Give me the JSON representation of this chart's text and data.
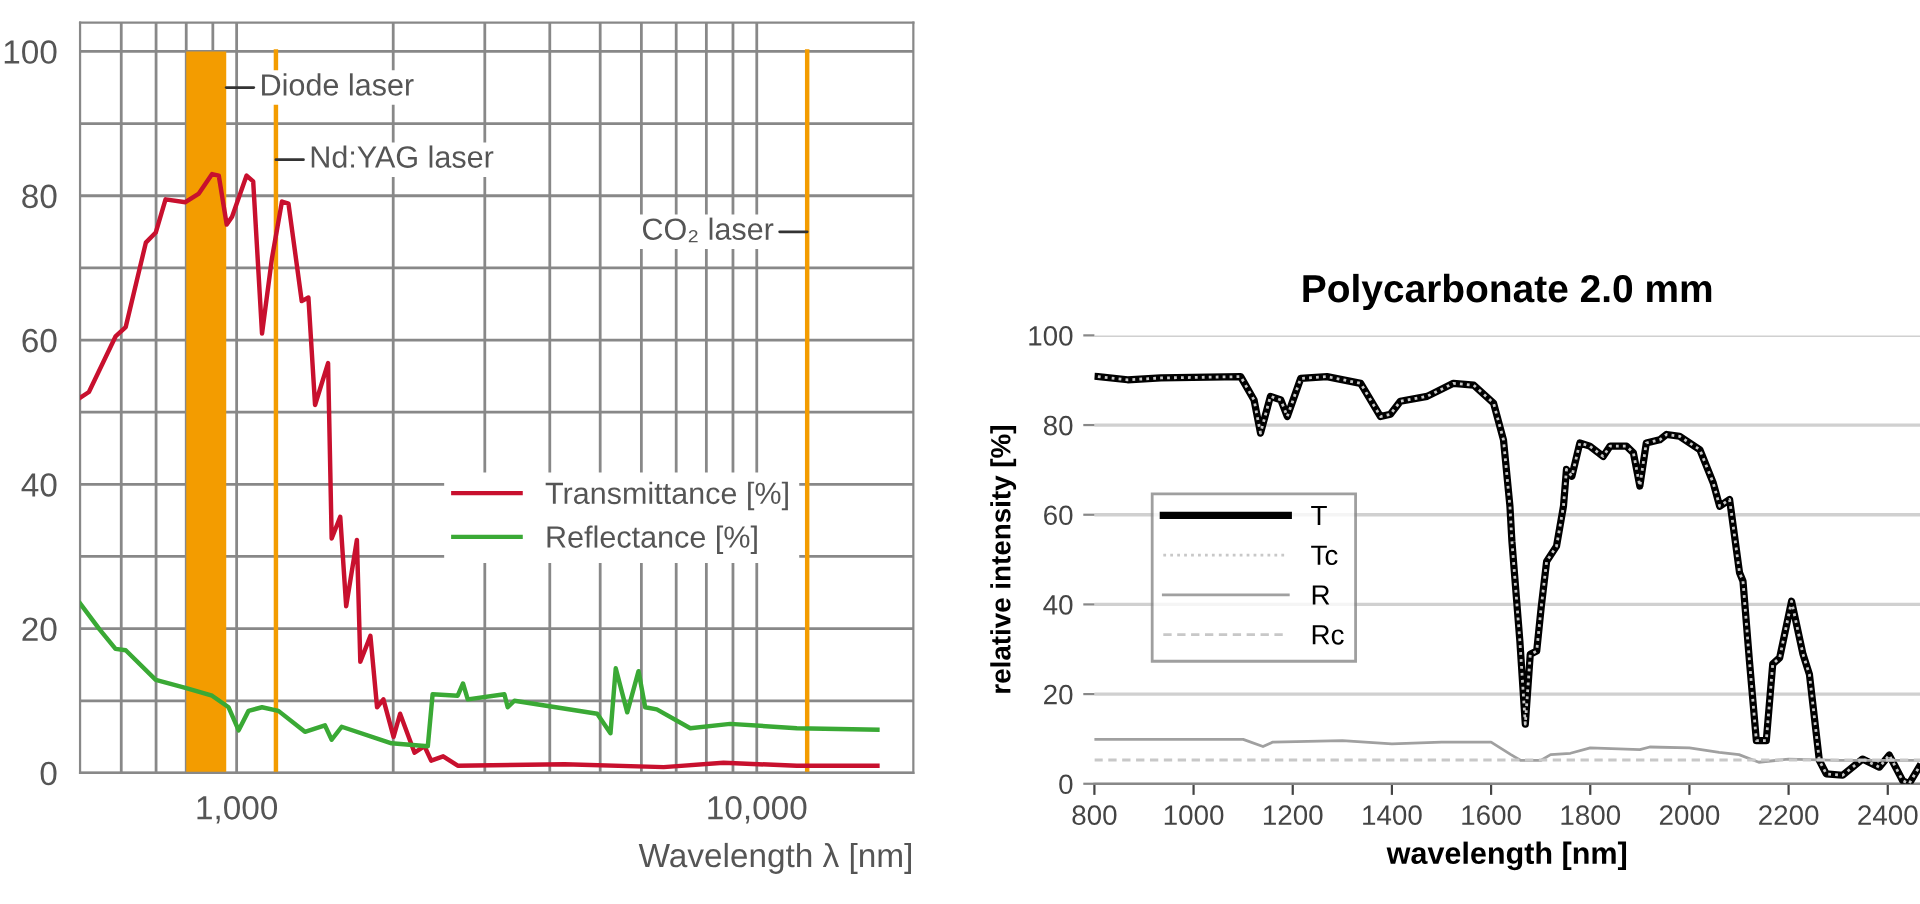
{
  "chart_data": [
    {
      "type": "line",
      "xlabel": "Wavelength λ [nm]",
      "log": "x",
      "xlim": [
        500,
        20000
      ],
      "ylim": [
        0,
        104
      ],
      "xticks": [
        {
          "value": 600,
          "label": null
        },
        {
          "value": 700,
          "label": null
        },
        {
          "value": 800,
          "label": null
        },
        {
          "value": 900,
          "label": null
        },
        {
          "value": 1000,
          "label": "1,000"
        },
        {
          "value": 2000,
          "label": null
        },
        {
          "value": 3000,
          "label": null
        },
        {
          "value": 4000,
          "label": null
        },
        {
          "value": 5000,
          "label": null
        },
        {
          "value": 6000,
          "label": null
        },
        {
          "value": 7000,
          "label": null
        },
        {
          "value": 8000,
          "label": null
        },
        {
          "value": 9000,
          "label": null
        },
        {
          "value": 10000,
          "label": "10,000"
        }
      ],
      "yticks": [
        0,
        {
          "value": 10,
          "label": null
        },
        20,
        {
          "value": 30,
          "label": null
        },
        40,
        {
          "value": 50,
          "label": null
        },
        60,
        {
          "value": 70,
          "label": null
        },
        80,
        {
          "value": 90,
          "label": null
        },
        100
      ],
      "grid": true,
      "legend": "center",
      "bands": [
        {
          "axis": "x",
          "from": 800,
          "to": 955,
          "label": "Diode laser",
          "color": "#f39c00"
        }
      ],
      "ref_lines": [
        {
          "axis": "x",
          "value": 1190,
          "label": "Nd:YAG laser",
          "color": "#f39c00"
        },
        {
          "axis": "x",
          "value": 12500,
          "label": "CO₂ laser",
          "color": "#f39c00"
        }
      ],
      "series": [
        {
          "name": "Transmittance [%]",
          "color": "#c8102e",
          "x": [
            500,
            520,
            585,
            612,
            669,
            699,
            730,
            797,
            846,
            897,
            924,
            957,
            980,
            1045,
            1076,
            1119,
            1169,
            1222,
            1258,
            1334,
            1374,
            1415,
            1499,
            1523,
            1582,
            1624,
            1703,
            1729,
            1808,
            1862,
            1915,
            2003,
            2062,
            2198,
            2297,
            2366,
            2495,
            2661,
            4266,
            6622,
            8630,
            11940,
            17060
          ],
          "values": [
            52,
            52.8,
            60.5,
            61.8,
            73.5,
            74.9,
            79.5,
            79.1,
            80.3,
            83,
            82.8,
            76,
            77.1,
            82.8,
            82,
            60.9,
            71.3,
            79.2,
            78.9,
            65.4,
            65.9,
            51,
            56.8,
            32.5,
            35.5,
            23.1,
            32.3,
            15.4,
            19,
            9.1,
            10.2,
            5,
            8.2,
            2.8,
            3.7,
            1.7,
            2.3,
            1,
            1.2,
            0.8,
            1.4,
            1,
            1
          ]
        },
        {
          "name": "Reflectance [%]",
          "color": "#3aa935",
          "x": [
            500,
            545,
            585,
            612,
            699,
            797,
            897,
            965,
            1009,
            1054,
            1119,
            1203,
            1353,
            1478,
            1523,
            1592,
            1985,
            2331,
            2381,
            2661,
            2724,
            2782,
            3272,
            3320,
            3420,
            4934,
            5233,
            5356,
            5636,
            5925,
            6101,
            6424,
            7450,
            8889,
            11940,
            17060
          ],
          "values": [
            23.5,
            19.9,
            17.2,
            17,
            12.9,
            11.8,
            10.7,
            9.1,
            5.9,
            8.6,
            9.1,
            8.6,
            5.7,
            6.6,
            4.6,
            6.4,
            4.1,
            3.7,
            10.9,
            10.7,
            12.4,
            10.2,
            10.9,
            9.1,
            10,
            8.2,
            5.5,
            14.5,
            8.4,
            14.1,
            9.1,
            8.8,
            6.2,
            6.8,
            6.2,
            6
          ]
        }
      ]
    },
    {
      "type": "line",
      "title": "Polycarbonate 2.0 mm",
      "xlabel": "wavelength [nm]",
      "ylabel": "relative intensity [%]",
      "xlim": [
        800,
        2465
      ],
      "ylim": [
        0,
        100
      ],
      "xticks": [
        800,
        1000,
        1200,
        1400,
        1600,
        1800,
        2000,
        2200,
        2400
      ],
      "yticks": [
        0,
        20,
        40,
        60,
        80,
        100
      ],
      "grid": "y",
      "legend": "center left",
      "series": [
        {
          "name": "T",
          "color": "#000000",
          "line_style": "solid",
          "x": [
            807,
            867,
            934,
            1095,
            1122,
            1135,
            1155,
            1176,
            1189,
            1216,
            1269,
            1337,
            1377,
            1397,
            1417,
            1471,
            1524,
            1565,
            1605,
            1625,
            1638,
            1642,
            1658,
            1669,
            1679,
            1692,
            1701,
            1712,
            1732,
            1746,
            1752,
            1763,
            1779,
            1799,
            1826,
            1840,
            1873,
            1887,
            1900,
            1913,
            1940,
            1954,
            1980,
            2021,
            2048,
            2061,
            2081,
            2101,
            2108,
            2121,
            2135,
            2155,
            2168,
            2182,
            2206,
            2229,
            2242,
            2262,
            2276,
            2309,
            2349,
            2383,
            2403,
            2430,
            2443,
            2463
          ],
          "values": [
            90.8,
            90.1,
            90.5,
            90.8,
            85.6,
            78.2,
            86.4,
            85.6,
            81.9,
            90.4,
            90.8,
            89.3,
            81.9,
            82.4,
            85.3,
            86.4,
            89.3,
            88.9,
            84.9,
            76.7,
            61.9,
            54.1,
            31.9,
            13.3,
            28.9,
            29.6,
            39.3,
            49.6,
            53,
            61.9,
            70.1,
            68.6,
            76,
            75.3,
            73,
            75.3,
            75.3,
            73.8,
            66.4,
            76,
            76.7,
            77.9,
            77.5,
            74.5,
            67.1,
            61.9,
            63.4,
            47.1,
            45.2,
            27.4,
            9.6,
            9.6,
            26.7,
            28.1,
            40.7,
            28.9,
            24.4,
            5.2,
            2.2,
            1.9,
            5.5,
            3.7,
            6.4,
            0.7,
            0,
            3.7
          ]
        },
        {
          "name": "Tc",
          "color": "#c8c8c8",
          "line_style": "dotted",
          "x": [
            807,
            867,
            934,
            1095,
            1122,
            1135,
            1155,
            1176,
            1189,
            1216,
            1269,
            1337,
            1377,
            1397,
            1417,
            1471,
            1524,
            1565,
            1605,
            1625,
            1638,
            1642,
            1658,
            1669,
            1679,
            1692,
            1701,
            1712,
            1732,
            1746,
            1752,
            1763,
            1779,
            1799,
            1826,
            1840,
            1873,
            1887,
            1900,
            1913,
            1940,
            1954,
            1980,
            2021,
            2048,
            2061,
            2081,
            2101,
            2108,
            2121,
            2135,
            2155,
            2168,
            2182,
            2206,
            2229,
            2242,
            2262,
            2276,
            2309,
            2349,
            2383,
            2403,
            2430,
            2443,
            2463
          ],
          "values": [
            90.8,
            90.1,
            90.5,
            90.8,
            85.6,
            78.2,
            86.4,
            85.6,
            81.9,
            90.4,
            90.8,
            89.3,
            81.9,
            82.4,
            85.3,
            86.4,
            89.3,
            88.9,
            84.9,
            76.7,
            61.9,
            54.1,
            31.9,
            13.3,
            28.9,
            29.6,
            39.3,
            49.6,
            53,
            61.9,
            70.1,
            68.6,
            76,
            75.3,
            73,
            75.3,
            75.3,
            73.8,
            66.4,
            76,
            76.7,
            77.9,
            77.5,
            74.5,
            67.1,
            61.9,
            63.4,
            47.1,
            45.2,
            27.4,
            9.6,
            9.6,
            26.7,
            28.1,
            40.7,
            28.9,
            24.4,
            5.2,
            2.2,
            1.9,
            5.5,
            3.7,
            6.4,
            0.7,
            0,
            3.7
          ]
        },
        {
          "name": "R",
          "color": "#a0a0a0",
          "line_style": "solid",
          "x": [
            800,
            1100,
            1140,
            1160,
            1300,
            1400,
            1500,
            1600,
            1640,
            1660,
            1700,
            1720,
            1760,
            1800,
            1900,
            1920,
            2000,
            2060,
            2100,
            2140,
            2200,
            2300,
            2465
          ],
          "values": [
            9.9,
            9.9,
            8.3,
            9.3,
            9.6,
            8.9,
            9.3,
            9.3,
            6.5,
            5.2,
            5.2,
            6.5,
            6.8,
            8,
            7.6,
            8.2,
            8,
            7,
            6.5,
            4.8,
            5.5,
            5.2,
            5.2
          ]
        },
        {
          "name": "Rc",
          "color": "#c8c8c8",
          "line_style": "dashed",
          "x": [
            800,
            2465
          ],
          "values": [
            5.3,
            5.3
          ]
        }
      ]
    }
  ]
}
